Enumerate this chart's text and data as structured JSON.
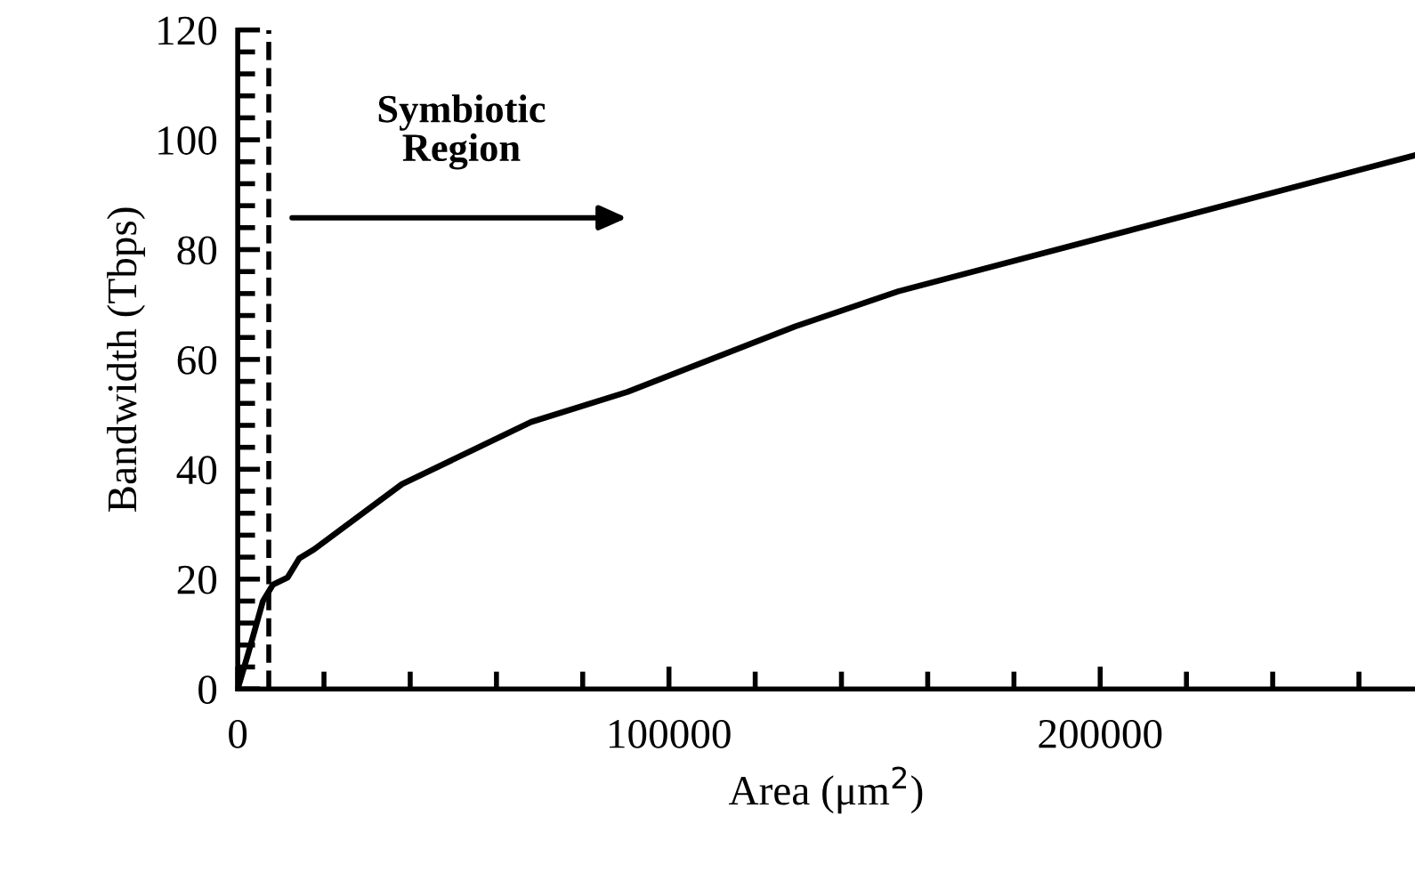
{
  "chart_data": {
    "type": "line",
    "xlabel": "Area (μm$^{2}$)",
    "ylabel": "Bandwidth (Tbps)",
    "x": [
      0,
      2450,
      5850,
      8160,
      11560,
      14300,
      17700,
      38100,
      68000,
      90390,
      129250,
      153180,
      272620
    ],
    "series": [
      {
        "color": "#000000",
        "values": [
          0,
          6.5,
          16,
          19,
          20.3,
          23.8,
          25.4,
          37.3,
          48.6,
          54.1,
          66,
          72.4,
          97.1
        ]
      }
    ],
    "xlim": [
      0,
      273000
    ],
    "xticks": [
      0,
      100000,
      200000
    ],
    "ylim": [
      0,
      120
    ],
    "yticks": [
      0,
      20,
      40,
      60,
      80,
      100,
      120
    ],
    "ref_lines": [
      {
        "axis": "x",
        "value": 7200,
        "color": "#000000",
        "line_style": "dashed"
      }
    ],
    "annotations": [
      "Symbiotic\nRegion"
    ],
    "grid": false,
    "legend": false,
    "marker": "none",
    "line_style": "solid"
  }
}
